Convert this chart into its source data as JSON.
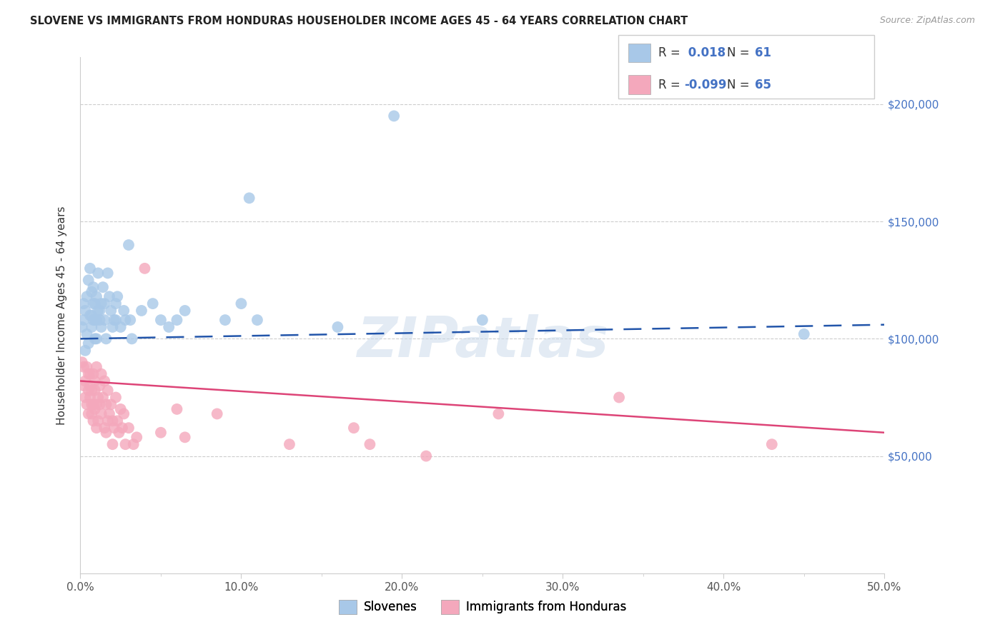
{
  "title": "SLOVENE VS IMMIGRANTS FROM HONDURAS HOUSEHOLDER INCOME AGES 45 - 64 YEARS CORRELATION CHART",
  "source": "Source: ZipAtlas.com",
  "ylabel": "Householder Income Ages 45 - 64 years",
  "ytick_values": [
    50000,
    100000,
    150000,
    200000
  ],
  "xlim": [
    0.0,
    0.5
  ],
  "ylim": [
    0,
    220000
  ],
  "legend_label1": "Slovenes",
  "legend_label2": "Immigrants from Honduras",
  "R1": 0.018,
  "N1": 61,
  "R2": -0.099,
  "N2": 65,
  "blue_color": "#a8c8e8",
  "pink_color": "#f4a8bc",
  "blue_line_color": "#2255aa",
  "pink_line_color": "#dd4477",
  "blue_scatter": [
    [
      0.001,
      105000
    ],
    [
      0.002,
      108000
    ],
    [
      0.002,
      115000
    ],
    [
      0.003,
      95000
    ],
    [
      0.003,
      112000
    ],
    [
      0.004,
      118000
    ],
    [
      0.004,
      102000
    ],
    [
      0.005,
      125000
    ],
    [
      0.005,
      98000
    ],
    [
      0.006,
      130000
    ],
    [
      0.006,
      110000
    ],
    [
      0.007,
      110000
    ],
    [
      0.007,
      105000
    ],
    [
      0.007,
      120000
    ],
    [
      0.008,
      122000
    ],
    [
      0.008,
      115000
    ],
    [
      0.008,
      108000
    ],
    [
      0.009,
      108000
    ],
    [
      0.009,
      100000
    ],
    [
      0.009,
      115000
    ],
    [
      0.01,
      118000
    ],
    [
      0.01,
      108000
    ],
    [
      0.01,
      100000
    ],
    [
      0.011,
      128000
    ],
    [
      0.011,
      112000
    ],
    [
      0.012,
      112000
    ],
    [
      0.012,
      108000
    ],
    [
      0.013,
      105000
    ],
    [
      0.013,
      115000
    ],
    [
      0.014,
      122000
    ],
    [
      0.015,
      115000
    ],
    [
      0.015,
      108000
    ],
    [
      0.016,
      100000
    ],
    [
      0.017,
      128000
    ],
    [
      0.018,
      118000
    ],
    [
      0.019,
      112000
    ],
    [
      0.02,
      105000
    ],
    [
      0.021,
      108000
    ],
    [
      0.022,
      115000
    ],
    [
      0.022,
      108000
    ],
    [
      0.023,
      118000
    ],
    [
      0.025,
      105000
    ],
    [
      0.027,
      112000
    ],
    [
      0.028,
      108000
    ],
    [
      0.03,
      140000
    ],
    [
      0.031,
      108000
    ],
    [
      0.032,
      100000
    ],
    [
      0.038,
      112000
    ],
    [
      0.045,
      115000
    ],
    [
      0.05,
      108000
    ],
    [
      0.055,
      105000
    ],
    [
      0.06,
      108000
    ],
    [
      0.065,
      112000
    ],
    [
      0.09,
      108000
    ],
    [
      0.1,
      115000
    ],
    [
      0.105,
      160000
    ],
    [
      0.11,
      108000
    ],
    [
      0.16,
      105000
    ],
    [
      0.195,
      195000
    ],
    [
      0.25,
      108000
    ],
    [
      0.45,
      102000
    ]
  ],
  "pink_scatter": [
    [
      0.001,
      90000
    ],
    [
      0.002,
      88000
    ],
    [
      0.002,
      80000
    ],
    [
      0.003,
      82000
    ],
    [
      0.003,
      75000
    ],
    [
      0.004,
      88000
    ],
    [
      0.004,
      72000
    ],
    [
      0.005,
      85000
    ],
    [
      0.005,
      78000
    ],
    [
      0.005,
      68000
    ],
    [
      0.006,
      80000
    ],
    [
      0.006,
      85000
    ],
    [
      0.006,
      75000
    ],
    [
      0.007,
      72000
    ],
    [
      0.007,
      78000
    ],
    [
      0.007,
      68000
    ],
    [
      0.008,
      85000
    ],
    [
      0.008,
      72000
    ],
    [
      0.008,
      65000
    ],
    [
      0.009,
      78000
    ],
    [
      0.009,
      82000
    ],
    [
      0.009,
      70000
    ],
    [
      0.01,
      88000
    ],
    [
      0.01,
      72000
    ],
    [
      0.01,
      62000
    ],
    [
      0.011,
      75000
    ],
    [
      0.011,
      65000
    ],
    [
      0.012,
      80000
    ],
    [
      0.012,
      72000
    ],
    [
      0.013,
      85000
    ],
    [
      0.013,
      68000
    ],
    [
      0.014,
      75000
    ],
    [
      0.015,
      82000
    ],
    [
      0.015,
      62000
    ],
    [
      0.016,
      72000
    ],
    [
      0.016,
      60000
    ],
    [
      0.017,
      78000
    ],
    [
      0.017,
      65000
    ],
    [
      0.018,
      68000
    ],
    [
      0.019,
      72000
    ],
    [
      0.02,
      65000
    ],
    [
      0.02,
      55000
    ],
    [
      0.021,
      62000
    ],
    [
      0.022,
      75000
    ],
    [
      0.023,
      65000
    ],
    [
      0.024,
      60000
    ],
    [
      0.025,
      70000
    ],
    [
      0.026,
      62000
    ],
    [
      0.027,
      68000
    ],
    [
      0.028,
      55000
    ],
    [
      0.03,
      62000
    ],
    [
      0.033,
      55000
    ],
    [
      0.035,
      58000
    ],
    [
      0.04,
      130000
    ],
    [
      0.05,
      60000
    ],
    [
      0.06,
      70000
    ],
    [
      0.065,
      58000
    ],
    [
      0.085,
      68000
    ],
    [
      0.13,
      55000
    ],
    [
      0.17,
      62000
    ],
    [
      0.18,
      55000
    ],
    [
      0.215,
      50000
    ],
    [
      0.26,
      68000
    ],
    [
      0.335,
      75000
    ],
    [
      0.43,
      55000
    ]
  ]
}
